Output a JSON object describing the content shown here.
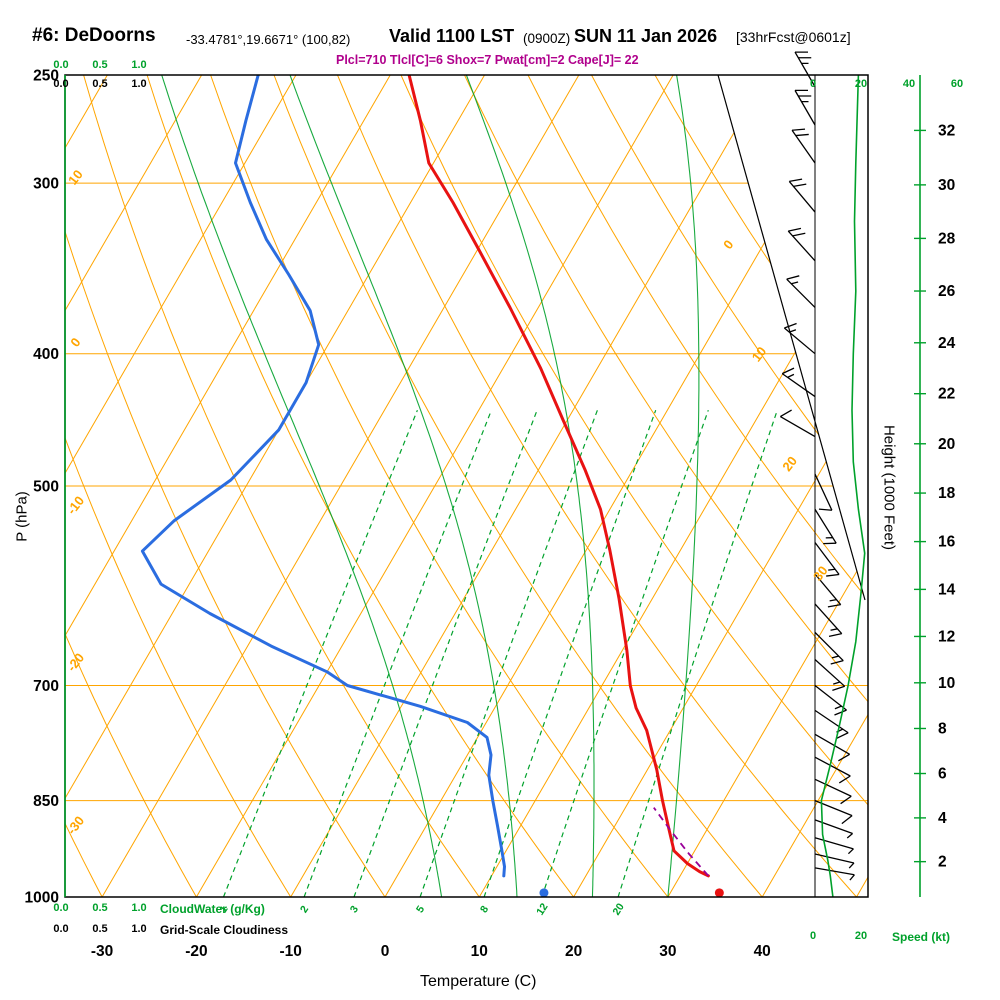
{
  "header": {
    "station": "#6: DeDoorns",
    "coords": "-33.4781°,19.6671° (100,82)",
    "valid": "Valid 1100 LST",
    "valid_z": "(0900Z)",
    "valid_date": "SUN 11 Jan 2026",
    "fcst": "[33hrFcst@0601z]",
    "params": "Plcl=710 Tlcl[C]=6 Shox=7 Pwat[cm]=2 Cape[J]= 22"
  },
  "axes": {
    "pressure": {
      "title": "P (hPa)",
      "ticks": [
        250,
        300,
        400,
        500,
        700,
        850,
        1000
      ]
    },
    "temperature": {
      "title": "Temperature (C)",
      "ticks": [
        -30,
        -20,
        -10,
        0,
        10,
        20,
        30,
        40
      ]
    },
    "height": {
      "title": "Height (1000 Feet)",
      "ticks": [
        2,
        4,
        6,
        8,
        10,
        12,
        14,
        16,
        18,
        20,
        22,
        24,
        26,
        28,
        30,
        32
      ]
    },
    "speed": {
      "title": "Speed (kt)",
      "ticks": [
        "0",
        "20",
        "40",
        "60"
      ]
    },
    "cloudwater": {
      "title": "CloudWater (g/Kg)",
      "ticks": [
        "0.0",
        "0.5",
        "1.0"
      ]
    },
    "cloudiness": {
      "title": "Grid-Scale Cloudiness",
      "ticks": [
        "0.0",
        "0.5",
        "1.0"
      ]
    }
  },
  "colors": {
    "grid": "#ffa500",
    "green": "#00a12b",
    "temperature": "#e81212",
    "dewpoint": "#2b6de0",
    "parcel": "#990099",
    "params": "#b0008c",
    "axis": "#000000"
  },
  "chart_data": {
    "type": "line",
    "subtype": "skewt-sounding",
    "pressure_range_hpa": [
      250,
      1000
    ],
    "isobars": [
      300,
      400,
      500,
      700,
      850
    ],
    "isotherms_c": {
      "start": -100,
      "end": 50,
      "step": 10
    },
    "dry_adiabats_c": {
      "start": -40,
      "end": 100,
      "step": 10
    },
    "dry_adiabat_labels": [
      10,
      0,
      -10,
      -20,
      -30
    ],
    "isotherm_labels": [
      0,
      10,
      20,
      30
    ],
    "mixing_ratio_gkg": [
      1,
      2,
      3,
      5,
      8,
      12,
      20
    ],
    "moist_adiabats_c": [
      6,
      14,
      22,
      30
    ],
    "temperature_profile": [
      [
        250,
        -48
      ],
      [
        270,
        -44
      ],
      [
        290,
        -40.5
      ],
      [
        310,
        -35.5
      ],
      [
        335,
        -30
      ],
      [
        370,
        -23
      ],
      [
        410,
        -16
      ],
      [
        447,
        -10.5
      ],
      [
        487,
        -5
      ],
      [
        520,
        -1
      ],
      [
        557,
        2.5
      ],
      [
        605,
        6.5
      ],
      [
        660,
        10.5
      ],
      [
        700,
        13
      ],
      [
        727,
        15
      ],
      [
        755,
        17.5
      ],
      [
        807,
        21
      ],
      [
        850,
        23.5
      ],
      [
        893,
        26
      ],
      [
        925,
        27.8
      ],
      [
        945,
        30
      ],
      [
        958,
        31.8
      ],
      [
        965,
        33
      ]
    ],
    "dewpoint_profile": [
      [
        250,
        -64
      ],
      [
        270,
        -62.5
      ],
      [
        290,
        -61
      ],
      [
        310,
        -57
      ],
      [
        330,
        -53
      ],
      [
        350,
        -48.5
      ],
      [
        372,
        -44
      ],
      [
        394,
        -41
      ],
      [
        420,
        -40
      ],
      [
        455,
        -40
      ],
      [
        495,
        -42
      ],
      [
        530,
        -45.5
      ],
      [
        558,
        -47
      ],
      [
        590,
        -43
      ],
      [
        620,
        -36
      ],
      [
        655,
        -27.5
      ],
      [
        684,
        -20
      ],
      [
        700,
        -17
      ],
      [
        725,
        -8
      ],
      [
        745,
        -2
      ],
      [
        764,
        1
      ],
      [
        787,
        2.5
      ],
      [
        814,
        3.5
      ],
      [
        850,
        5.5
      ],
      [
        886,
        7.5
      ],
      [
        924,
        9.5
      ],
      [
        950,
        10.8
      ],
      [
        965,
        11.3
      ]
    ],
    "parcel_profile": [
      [
        965,
        33
      ],
      [
        930,
        29.6
      ],
      [
        895,
        26.3
      ],
      [
        860,
        23
      ]
    ],
    "surface": {
      "pressure": 993,
      "temperature": 35.2,
      "dewpoint": 16.6
    },
    "wind_barbs": [
      {
        "p": 255,
        "spd": 25,
        "dir": 330
      },
      {
        "p": 272,
        "spd": 25,
        "dir": 330
      },
      {
        "p": 290,
        "spd": 20,
        "dir": 325
      },
      {
        "p": 315,
        "spd": 20,
        "dir": 320
      },
      {
        "p": 342,
        "spd": 20,
        "dir": 318
      },
      {
        "p": 370,
        "spd": 15,
        "dir": 315
      },
      {
        "p": 400,
        "spd": 15,
        "dir": 310
      },
      {
        "p": 430,
        "spd": 15,
        "dir": 305
      },
      {
        "p": 460,
        "spd": 10,
        "dir": 300
      },
      {
        "p": 490,
        "spd": 12,
        "dir": 155
      },
      {
        "p": 520,
        "spd": 15,
        "dir": 148
      },
      {
        "p": 550,
        "spd": 15,
        "dir": 143
      },
      {
        "p": 580,
        "spd": 18,
        "dir": 140
      },
      {
        "p": 610,
        "spd": 18,
        "dir": 138
      },
      {
        "p": 640,
        "spd": 18,
        "dir": 135
      },
      {
        "p": 670,
        "spd": 15,
        "dir": 132
      },
      {
        "p": 700,
        "spd": 15,
        "dir": 128
      },
      {
        "p": 730,
        "spd": 15,
        "dir": 124
      },
      {
        "p": 760,
        "spd": 12,
        "dir": 120
      },
      {
        "p": 790,
        "spd": 12,
        "dir": 118
      },
      {
        "p": 820,
        "spd": 10,
        "dir": 115
      },
      {
        "p": 850,
        "spd": 10,
        "dir": 112
      },
      {
        "p": 878,
        "spd": 8,
        "dir": 110
      },
      {
        "p": 905,
        "spd": 8,
        "dir": 106
      },
      {
        "p": 930,
        "spd": 6,
        "dir": 103
      },
      {
        "p": 952,
        "spd": 5,
        "dir": 100
      }
    ],
    "speed_profile_kt": [
      [
        1000,
        7
      ],
      [
        965,
        6
      ],
      [
        940,
        5
      ],
      [
        900,
        3
      ],
      [
        850,
        2.5
      ],
      [
        800,
        6
      ],
      [
        750,
        9.5
      ],
      [
        700,
        13
      ],
      [
        650,
        16
      ],
      [
        600,
        18
      ],
      [
        560,
        19.5
      ],
      [
        520,
        17
      ],
      [
        480,
        15
      ],
      [
        440,
        14.5
      ],
      [
        400,
        15
      ],
      [
        360,
        16
      ],
      [
        320,
        15.5
      ],
      [
        290,
        16
      ],
      [
        250,
        17
      ]
    ]
  }
}
